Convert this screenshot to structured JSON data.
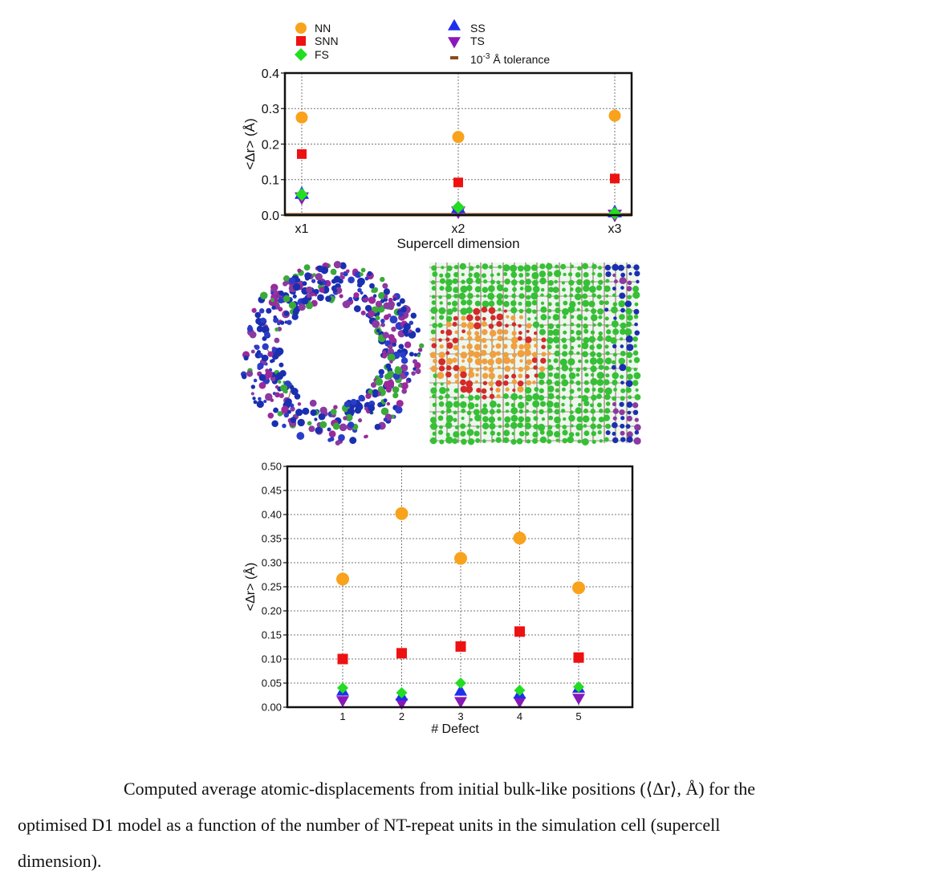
{
  "legend": {
    "items": [
      {
        "key": "NN",
        "label": "NN",
        "color": "#f9a21c",
        "shape": "circle"
      },
      {
        "key": "SNN",
        "label": "SNN",
        "color": "#ee1111",
        "shape": "square"
      },
      {
        "key": "FS",
        "label": "FS",
        "color": "#22dd22",
        "shape": "diamond"
      },
      {
        "key": "SS",
        "label": "SS",
        "color": "#1f2fee",
        "shape": "triangle-up"
      },
      {
        "key": "TS",
        "label": "TS",
        "color": "#8a18b8",
        "shape": "triangle-down"
      }
    ],
    "tolerance": {
      "prefix": "10",
      "exponent": "-3",
      "suffix": " Å tolerance",
      "color": "#8a4a1a"
    }
  },
  "chart_data": [
    {
      "type": "scatter",
      "categories": [
        "x1",
        "x2",
        "x3"
      ],
      "xlabel": "Supercell dimension",
      "ylabel": "<Δr> (Å)",
      "ylim": [
        0,
        0.4
      ],
      "yticks": [
        "0.0",
        "0.1",
        "0.2",
        "0.3",
        "0.4"
      ],
      "grid": true,
      "tolerance_line": 0.001,
      "series": [
        {
          "name": "NN",
          "values": [
            0.275,
            0.22,
            0.28
          ]
        },
        {
          "name": "SNN",
          "values": [
            0.172,
            0.092,
            0.103
          ]
        },
        {
          "name": "FS",
          "values": [
            0.058,
            0.022,
            0.005
          ]
        },
        {
          "name": "SS",
          "values": [
            0.058,
            0.018,
            0.006
          ]
        },
        {
          "name": "TS",
          "values": [
            0.052,
            0.012,
            0.003
          ]
        }
      ]
    },
    {
      "type": "scatter",
      "categories": [
        "1",
        "2",
        "3",
        "4",
        "5"
      ],
      "xlabel": "# Defect",
      "ylabel": "<Δr> (Å)",
      "ylim": [
        0,
        0.5
      ],
      "yticks": [
        "0.00",
        "0.05",
        "0.10",
        "0.15",
        "0.20",
        "0.25",
        "0.30",
        "0.35",
        "0.40",
        "0.45",
        "0.50"
      ],
      "grid": true,
      "series": [
        {
          "name": "NN",
          "values": [
            0.266,
            0.402,
            0.309,
            0.351,
            0.248
          ]
        },
        {
          "name": "SNN",
          "values": [
            0.1,
            0.112,
            0.126,
            0.157,
            0.103
          ]
        },
        {
          "name": "FS",
          "values": [
            0.04,
            0.03,
            0.05,
            0.035,
            0.042
          ]
        },
        {
          "name": "SS",
          "values": [
            0.032,
            0.022,
            0.032,
            0.026,
            0.038
          ]
        },
        {
          "name": "TS",
          "values": [
            0.015,
            0.01,
            0.013,
            0.013,
            0.02
          ]
        }
      ]
    }
  ],
  "caption": {
    "line1": "Computed average atomic-displacements from initial bulk-like positions (⟨Δr⟩, Å) for the",
    "line2": "optimised D1 model as a function of the number of NT-repeat units in the simulation cell (supercell",
    "line3": "dimension)."
  }
}
